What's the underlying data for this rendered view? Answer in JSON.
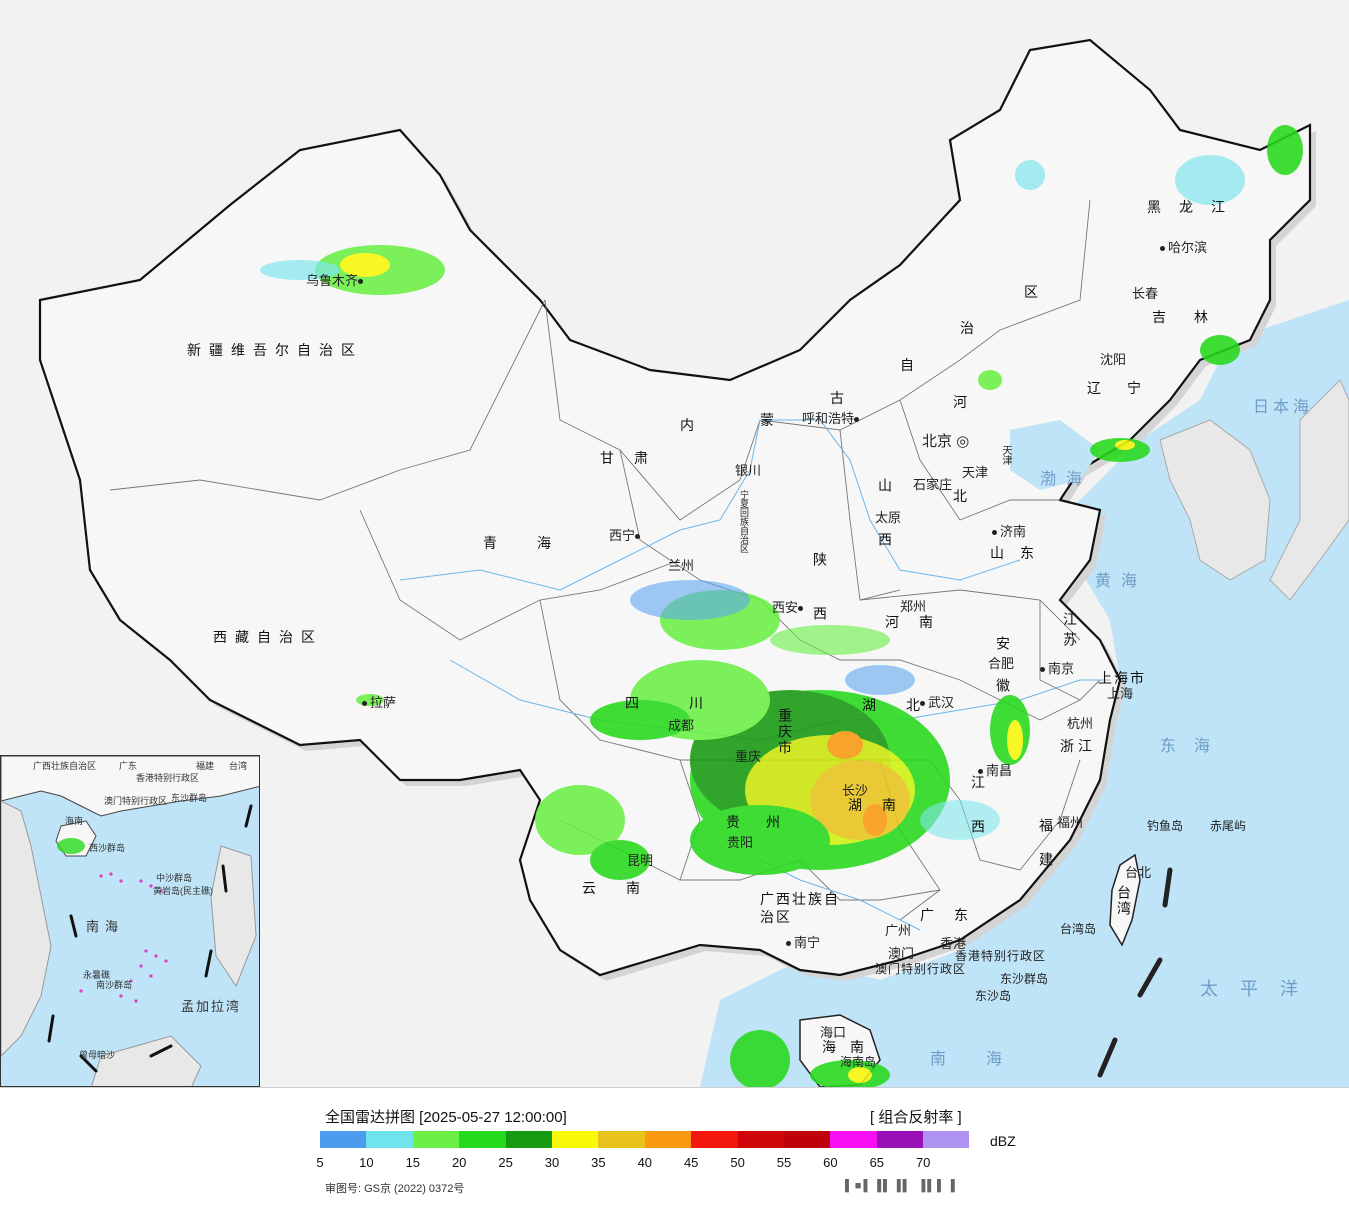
{
  "map": {
    "provinces": [
      {
        "id": "xinjiang",
        "label": "新疆维吾尔自治区"
      },
      {
        "id": "xizang",
        "label": "西藏自治区"
      },
      {
        "id": "qinghai",
        "label": "青海"
      },
      {
        "id": "gansu",
        "label": "甘肃"
      },
      {
        "id": "neimenggu_1",
        "label": "内"
      },
      {
        "id": "neimenggu_2",
        "label": "蒙"
      },
      {
        "id": "neimenggu_3",
        "label": "古"
      },
      {
        "id": "neimenggu_4",
        "label": "自"
      },
      {
        "id": "neimenggu_5",
        "label": "治"
      },
      {
        "id": "neimenggu_6",
        "label": "区"
      },
      {
        "id": "heilongjiang",
        "label": "黑龙江"
      },
      {
        "id": "jilin",
        "label": "吉林"
      },
      {
        "id": "liaoning",
        "label": "辽宁"
      },
      {
        "id": "hebei_1",
        "label": "河"
      },
      {
        "id": "hebei_2",
        "label": "北"
      },
      {
        "id": "shanxi",
        "label": "山西"
      },
      {
        "id": "shandong",
        "label": "山东"
      },
      {
        "id": "shaanxi",
        "label": "陕西"
      },
      {
        "id": "henan",
        "label": "河南"
      },
      {
        "id": "jiangsu",
        "label": "江苏"
      },
      {
        "id": "anhui",
        "label": "安徽"
      },
      {
        "id": "hubei",
        "label": "湖北"
      },
      {
        "id": "sichuan",
        "label": "四川"
      },
      {
        "id": "chongqing",
        "label": "重庆市"
      },
      {
        "id": "zhejiang",
        "label": "浙江"
      },
      {
        "id": "jiangxi",
        "label": "江西"
      },
      {
        "id": "hunan",
        "label": "湖南"
      },
      {
        "id": "guizhou",
        "label": "贵州"
      },
      {
        "id": "fujian",
        "label": "福建"
      },
      {
        "id": "yunnan",
        "label": "云南"
      },
      {
        "id": "guangxi",
        "label": "广西壮族自治区"
      },
      {
        "id": "guangdong",
        "label": "广东"
      },
      {
        "id": "taiwan",
        "label": "台湾"
      },
      {
        "id": "hainan",
        "label": "海南"
      },
      {
        "id": "ningxia",
        "label": "宁夏回族自治区"
      },
      {
        "id": "tianjin",
        "label": "天津"
      },
      {
        "id": "shanghai",
        "label": "上海市"
      },
      {
        "id": "hk",
        "label": "香港特别行政区"
      },
      {
        "id": "macao",
        "label": "澳门特别行政区"
      }
    ],
    "cities": [
      {
        "id": "urumqi",
        "label": "乌鲁木齐"
      },
      {
        "id": "lhasa",
        "label": "拉萨"
      },
      {
        "id": "xining",
        "label": "西宁"
      },
      {
        "id": "lanzhou",
        "label": "兰州"
      },
      {
        "id": "yinchuan",
        "label": "银川"
      },
      {
        "id": "hohhot",
        "label": "呼和浩特"
      },
      {
        "id": "beijing",
        "label": "北京"
      },
      {
        "id": "tianjin_city",
        "label": "天津"
      },
      {
        "id": "shijiazhuang",
        "label": "石家庄"
      },
      {
        "id": "taiyuan",
        "label": "太原"
      },
      {
        "id": "jinan",
        "label": "济南"
      },
      {
        "id": "zhengzhou",
        "label": "郑州"
      },
      {
        "id": "xian",
        "label": "西安"
      },
      {
        "id": "harbin",
        "label": "哈尔滨"
      },
      {
        "id": "changchun",
        "label": "长春"
      },
      {
        "id": "shenyang",
        "label": "沈阳"
      },
      {
        "id": "nanjing",
        "label": "南京"
      },
      {
        "id": "hefei",
        "label": "合肥"
      },
      {
        "id": "shanghai_city",
        "label": "上海"
      },
      {
        "id": "hangzhou",
        "label": "杭州"
      },
      {
        "id": "wuhan",
        "label": "武汉"
      },
      {
        "id": "chengdu",
        "label": "成都"
      },
      {
        "id": "chongqing_city",
        "label": "重庆"
      },
      {
        "id": "nanchang",
        "label": "南昌"
      },
      {
        "id": "changsha",
        "label": "长沙"
      },
      {
        "id": "guiyang",
        "label": "贵阳"
      },
      {
        "id": "fuzhou",
        "label": "福州"
      },
      {
        "id": "taibei",
        "label": "台北"
      },
      {
        "id": "kunming",
        "label": "昆明"
      },
      {
        "id": "nanning",
        "label": "南宁"
      },
      {
        "id": "guangzhou",
        "label": "广州"
      },
      {
        "id": "macao_city",
        "label": "澳门"
      },
      {
        "id": "hongkong_city",
        "label": "香港"
      },
      {
        "id": "haikou",
        "label": "海口"
      }
    ],
    "seas": [
      {
        "id": "bohai",
        "label": "渤海"
      },
      {
        "id": "huanghai",
        "label": "黄海"
      },
      {
        "id": "donghai",
        "label": "东海"
      },
      {
        "id": "nanhai",
        "label": "南海"
      },
      {
        "id": "ribenhai",
        "label": "日本海"
      },
      {
        "id": "taipingyang",
        "label": "太平洋"
      }
    ],
    "islands": [
      {
        "id": "diaoyu",
        "label": "钓鱼岛"
      },
      {
        "id": "chiwei",
        "label": "赤尾屿"
      },
      {
        "id": "dongsha_qd",
        "label": "东沙群岛"
      },
      {
        "id": "dongsha",
        "label": "东沙岛"
      },
      {
        "id": "taiwan_island",
        "label": "台湾岛"
      },
      {
        "id": "hainan_island",
        "label": "海南岛"
      }
    ]
  },
  "inset": {
    "labels": [
      {
        "id": "guangxi",
        "label": "广西壮族自治区"
      },
      {
        "id": "guangdong",
        "label": "广东"
      },
      {
        "id": "fujian",
        "label": "福建"
      },
      {
        "id": "taiwan",
        "label": "台湾"
      },
      {
        "id": "hk",
        "label": "香港特别行政区"
      },
      {
        "id": "macao",
        "label": "澳门特别行政区"
      },
      {
        "id": "dongsha",
        "label": "东沙群岛"
      },
      {
        "id": "hainan",
        "label": "海南"
      },
      {
        "id": "xisha",
        "label": "西沙群岛"
      },
      {
        "id": "zhongsha",
        "label": "中沙群岛"
      },
      {
        "id": "huangyan",
        "label": "黄岩岛(民主礁)"
      },
      {
        "id": "nansha",
        "label": "南沙群岛"
      },
      {
        "id": "yongshu",
        "label": "永暑礁"
      },
      {
        "id": "zengmu",
        "label": "曾母暗沙"
      }
    ],
    "seas": [
      {
        "id": "nanhai",
        "label": "南海"
      },
      {
        "id": "mengjiala",
        "label": "孟加拉湾"
      }
    ]
  },
  "legend": {
    "title": "全国雷达拼图 [2025-05-27 12:00:00]",
    "product": "[ 组合反射率 ]",
    "unit": "dBZ",
    "ticks": [
      "5",
      "10",
      "15",
      "20",
      "25",
      "30",
      "35",
      "40",
      "45",
      "50",
      "55",
      "60",
      "65",
      "70"
    ],
    "colors": [
      "#4b9cef",
      "#6fe4ec",
      "#6af046",
      "#27d91c",
      "#169a0f",
      "#f8f80a",
      "#e7c31c",
      "#f99811",
      "#f4170c",
      "#cf0509",
      "#bd0009",
      "#f90ff3",
      "#9810b6",
      "#ad93ef"
    ],
    "approval": "审图号: GS京 (2022) 0372号",
    "stamp": "▌■▌▐▌▐▌ ▐▌▌▐"
  },
  "colors": {
    "ocean": "#bfe3f7",
    "land": "#f7f7f7",
    "border": "#222222"
  }
}
